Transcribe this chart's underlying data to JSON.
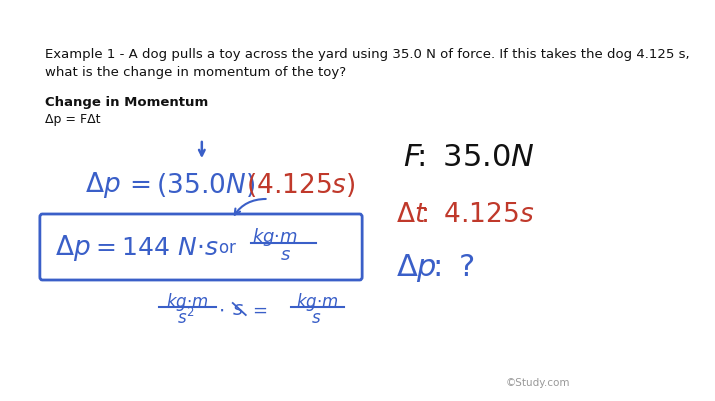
{
  "background_color": "#ffffff",
  "example_text_line1": "Example 1 - A dog pulls a toy across the yard using 35.0 N of force. If this takes the dog 4.125 s,",
  "example_text_line2": "what is the change in momentum of the toy?",
  "label_bold": "Change in Momentum",
  "label_formula": "Δp = FΔt",
  "watermark": "©Study.com",
  "blue_color": "#3a5fc8",
  "red_color": "#c0392b",
  "black_color": "#111111",
  "gray_color": "#999999",
  "text_fontsize": 9.5,
  "fig_width": 7.15,
  "fig_height": 4.02
}
